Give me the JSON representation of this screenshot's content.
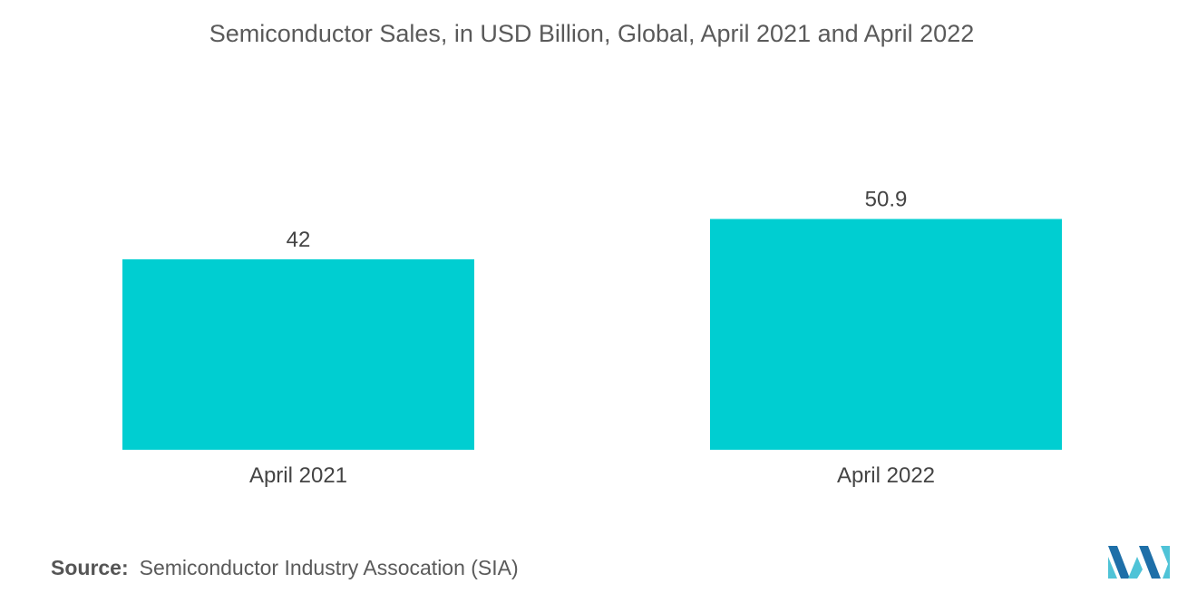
{
  "colors": {
    "bar": "#00CED1",
    "text": "#555555",
    "logo_dark": "#1E6FA8",
    "logo_light": "#4FC3D7"
  },
  "chart_data": {
    "type": "bar",
    "title": "Semiconductor Sales, in USD Billion, Global, April 2021 and April 2022",
    "categories": [
      "April 2021",
      "April 2022"
    ],
    "values": [
      42,
      50.9
    ],
    "value_labels": [
      "42",
      "50.9"
    ],
    "xlabel": "",
    "ylabel": "",
    "ylim": [
      0,
      58
    ],
    "grid": false,
    "legend": "none"
  },
  "source": {
    "label": "Source:",
    "text": "Semiconductor Industry Assocation (SIA)"
  },
  "logo": {
    "icon": "mordor-intelligence-logo-icon"
  }
}
